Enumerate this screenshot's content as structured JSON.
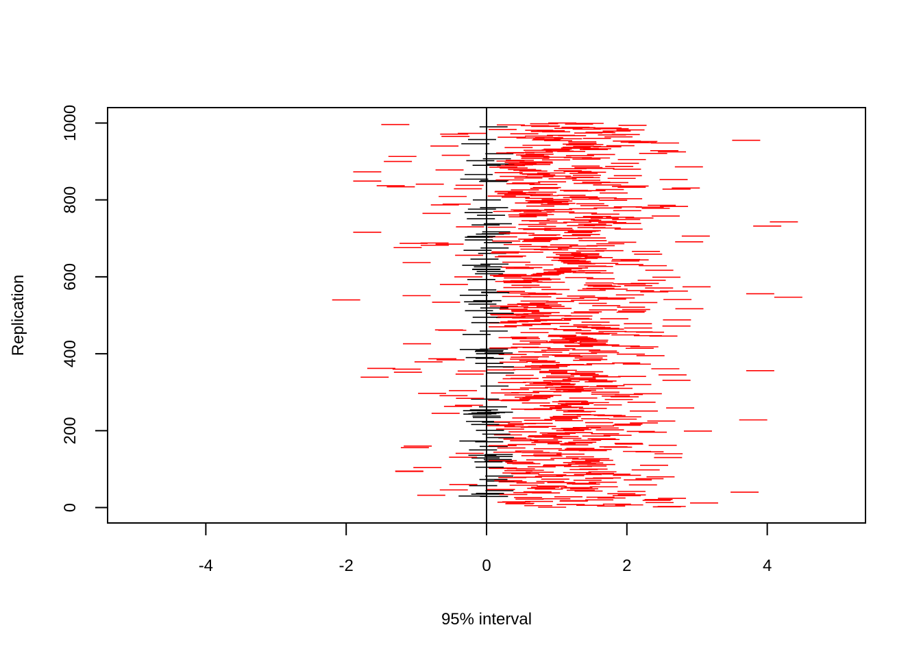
{
  "chart_data": {
    "type": "interval",
    "xlabel": "95% interval",
    "ylabel": "Replication",
    "xlim": [
      -5.4,
      5.4
    ],
    "ylim": [
      -40,
      1040
    ],
    "x_ticks": [
      -4,
      -2,
      0,
      2,
      4
    ],
    "x_tick_labels": [
      "-4",
      "-2",
      "0",
      "2",
      "4"
    ],
    "y_ticks": [
      0,
      200,
      400,
      600,
      800,
      1000
    ],
    "y_tick_labels": [
      "0",
      "200",
      "400",
      "600",
      "800",
      "1000"
    ],
    "reference_line_x": 0,
    "colors": {
      "covers_zero": "#000000",
      "excludes_zero": "#ff0000"
    },
    "replications": 1000,
    "interval_width_approx": 0.4,
    "interval_center_mean_approx": 1.0,
    "interval_center_sd_approx": 0.8,
    "intervals_sample": [
      {
        "replication": 12,
        "lower": 2.9,
        "upper": 3.3
      },
      {
        "replication": 8,
        "lower": 1.0,
        "upper": 1.4
      },
      {
        "replication": 94,
        "lower": -1.3,
        "upper": -0.9
      },
      {
        "replication": 228,
        "lower": 3.6,
        "upper": 4.0
      },
      {
        "replication": 356,
        "lower": 3.7,
        "upper": 4.1
      },
      {
        "replication": 362,
        "lower": -1.7,
        "upper": -1.3
      },
      {
        "replication": 540,
        "lower": -2.2,
        "upper": -1.8
      },
      {
        "replication": 547,
        "lower": 4.1,
        "upper": 4.5
      },
      {
        "replication": 556,
        "lower": 3.7,
        "upper": 4.1
      },
      {
        "replication": 716,
        "lower": -1.9,
        "upper": -1.5
      },
      {
        "replication": 732,
        "lower": 3.8,
        "upper": 4.2
      },
      {
        "replication": 873,
        "lower": -1.9,
        "upper": -1.5
      },
      {
        "replication": 955,
        "lower": 3.5,
        "upper": 3.9
      },
      {
        "replication": 996,
        "lower": -1.5,
        "upper": -1.1
      },
      {
        "replication": 990,
        "lower": -0.1,
        "upper": 0.3
      },
      {
        "replication": 620,
        "lower": -0.2,
        "upper": 0.2
      },
      {
        "replication": 400,
        "lower": -0.15,
        "upper": 0.25
      },
      {
        "replication": 150,
        "lower": -0.25,
        "upper": 0.15
      }
    ]
  }
}
